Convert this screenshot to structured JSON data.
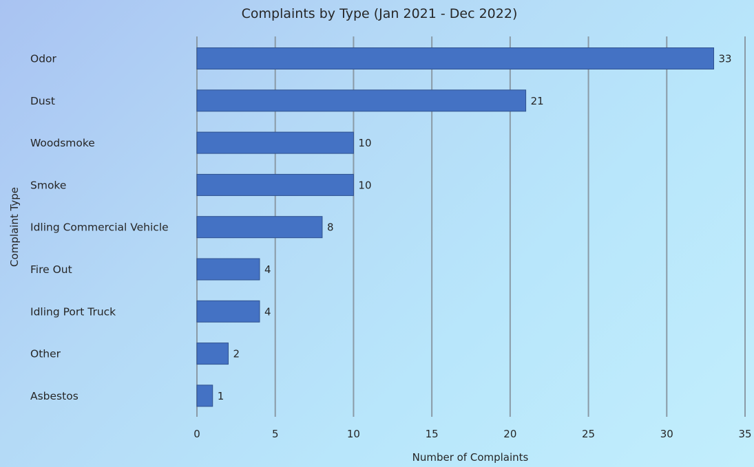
{
  "chart_data": {
    "type": "bar",
    "orientation": "horizontal",
    "title": "Complaints by Type (Jan 2021 - Dec 2022)",
    "xlabel": "Number of Complaints",
    "ylabel": "Complaint Type",
    "categories": [
      "Odor",
      "Dust",
      "Woodsmoke",
      "Smoke",
      "Idling Commercial Vehicle",
      "Fire Out",
      "Idling Port Truck",
      "Other",
      "Asbestos"
    ],
    "values": [
      33,
      21,
      10,
      10,
      8,
      4,
      4,
      2,
      1
    ],
    "xlim": [
      0,
      35
    ],
    "xticks": [
      0,
      5,
      10,
      15,
      20,
      25,
      30,
      35
    ],
    "grid": "vertical",
    "legend": "none",
    "data_labels": true,
    "bar_color": "#4472c4",
    "bar_edge_color": "#2f528f",
    "grid_color": "#8a9aa6"
  }
}
